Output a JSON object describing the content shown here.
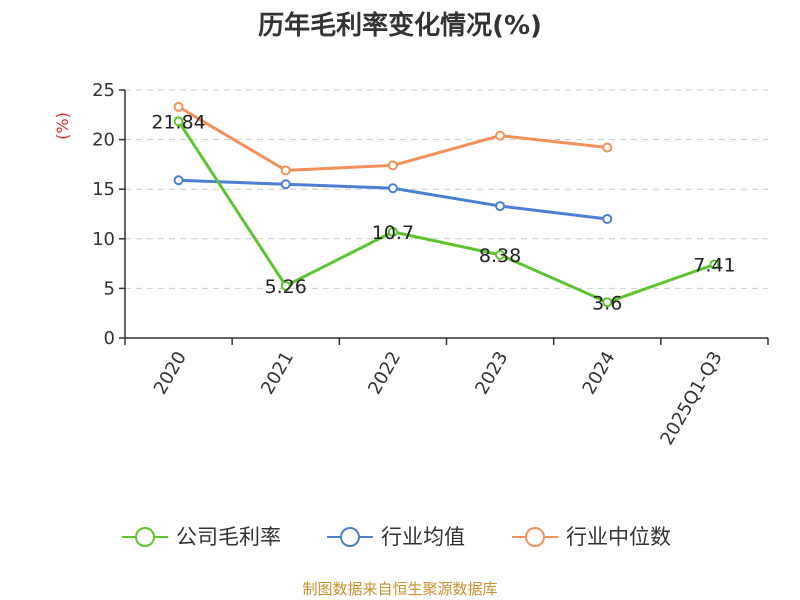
{
  "chart_data": {
    "type": "line",
    "title": "历年毛利率变化情况(%)",
    "ylabel": "(%)",
    "xlabel": "",
    "categories": [
      "2020",
      "2021",
      "2022",
      "2023",
      "2024",
      "2025Q1-Q3"
    ],
    "yticks": [
      "0",
      "5",
      "10",
      "15",
      "20",
      "25"
    ],
    "ylim": [
      0,
      25
    ],
    "grid": true,
    "legend_position": "bottom",
    "series": [
      {
        "name": "公司毛利率",
        "color": "#5fc42f",
        "values": [
          21.84,
          5.26,
          10.7,
          8.38,
          3.6,
          7.41
        ],
        "labels": [
          "21.84",
          "5.26",
          "10.7",
          "8.38",
          "3.6",
          "7.41"
        ]
      },
      {
        "name": "行业均值",
        "color": "#4e7fd6",
        "values": [
          15.9,
          15.5,
          15.1,
          13.3,
          12.0,
          null
        ]
      },
      {
        "name": "行业中位数",
        "color": "#f4915b",
        "values": [
          23.3,
          16.9,
          17.4,
          20.4,
          19.2,
          null
        ]
      }
    ]
  },
  "source": "制图数据来自恒生聚源数据库",
  "colors": {
    "ylabel": "#e8262c",
    "source": "#c8912e",
    "axis": "#333333",
    "grid": "#cccccc"
  }
}
